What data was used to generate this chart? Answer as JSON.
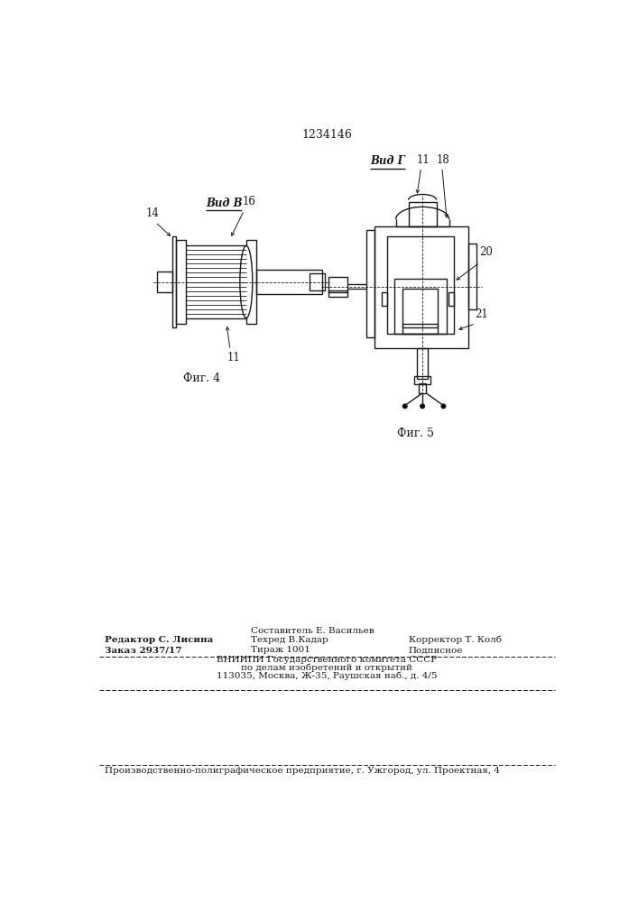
{
  "patent_number": "1234146",
  "background_color": "#ffffff",
  "line_color": "#1a1a1a",
  "fig4_label": "Фиг. 4",
  "fig5_label": "Фиг. 5",
  "vid_b_label": "Вид В",
  "vid_g_label": "Вид Г",
  "label_11": "11",
  "label_14": "14",
  "label_16": "16",
  "label_18": "18",
  "label_20": "20",
  "label_21": "21",
  "footer_editor": "Редактор С. Лисина",
  "footer_sostavitel": "Составитель Е. Васильев",
  "footer_tekhred": "Техред В.Кадар",
  "footer_korrektor": "Корректор Т. Колб",
  "footer_zakaz": "Заказ 2937/17",
  "footer_tirazh": "Тираж 1001",
  "footer_podpisnoe": "Подписное",
  "footer_vniipи": "ВНИИПИ Государственного комитета СССР",
  "footer_po_delam": "по делам изобретений и открытий",
  "footer_address": "113035, Москва, Ж-35, Раушская наб., д. 4/5",
  "footer_last": "Производственно-полиграфическое предприятие, г. Ужгород, ул. Проектная, 4"
}
